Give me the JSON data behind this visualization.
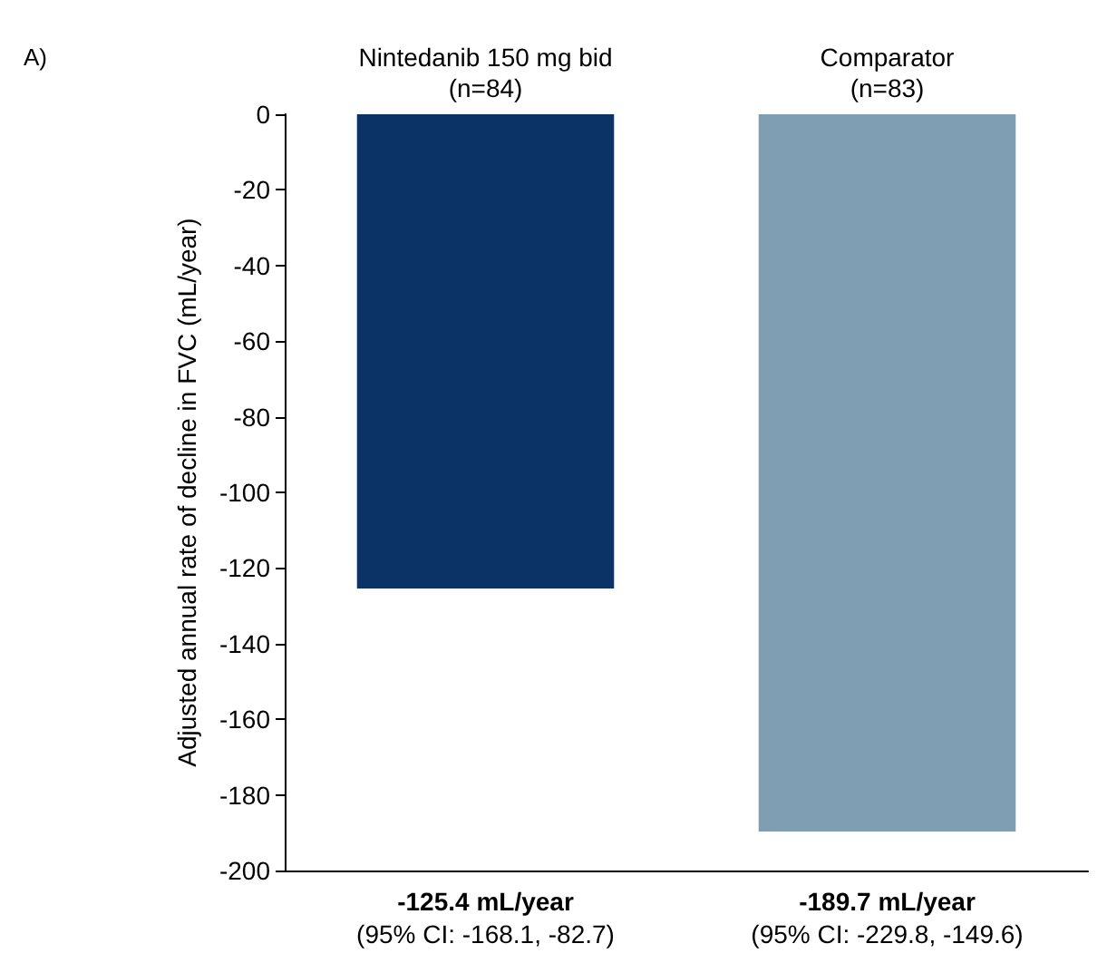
{
  "chart_data": {
    "type": "bar",
    "title": "A)",
    "categories": [
      "Nintedanib 150 mg bid\n(n=84)",
      "Comparator\n(n=83)"
    ],
    "series": [
      {
        "colors": [
          "#0b3366",
          "#7f9db3"
        ],
        "values": [
          -125.4,
          -189.7
        ]
      }
    ],
    "value_labels": [
      "-125.4 mL/year",
      "-189.7 mL/year"
    ],
    "annotations": [
      "(95% CI: -168.1, -82.7)",
      "(95% CI: -229.8, -149.6)"
    ],
    "ylabel": "Adjusted annual rate of decline in FVC (mL/year)",
    "ylim": [
      -200,
      0
    ],
    "yticks": [
      0,
      -20,
      -40,
      -60,
      -80,
      -100,
      -120,
      -140,
      -160,
      -180,
      -200
    ],
    "grid": false
  }
}
